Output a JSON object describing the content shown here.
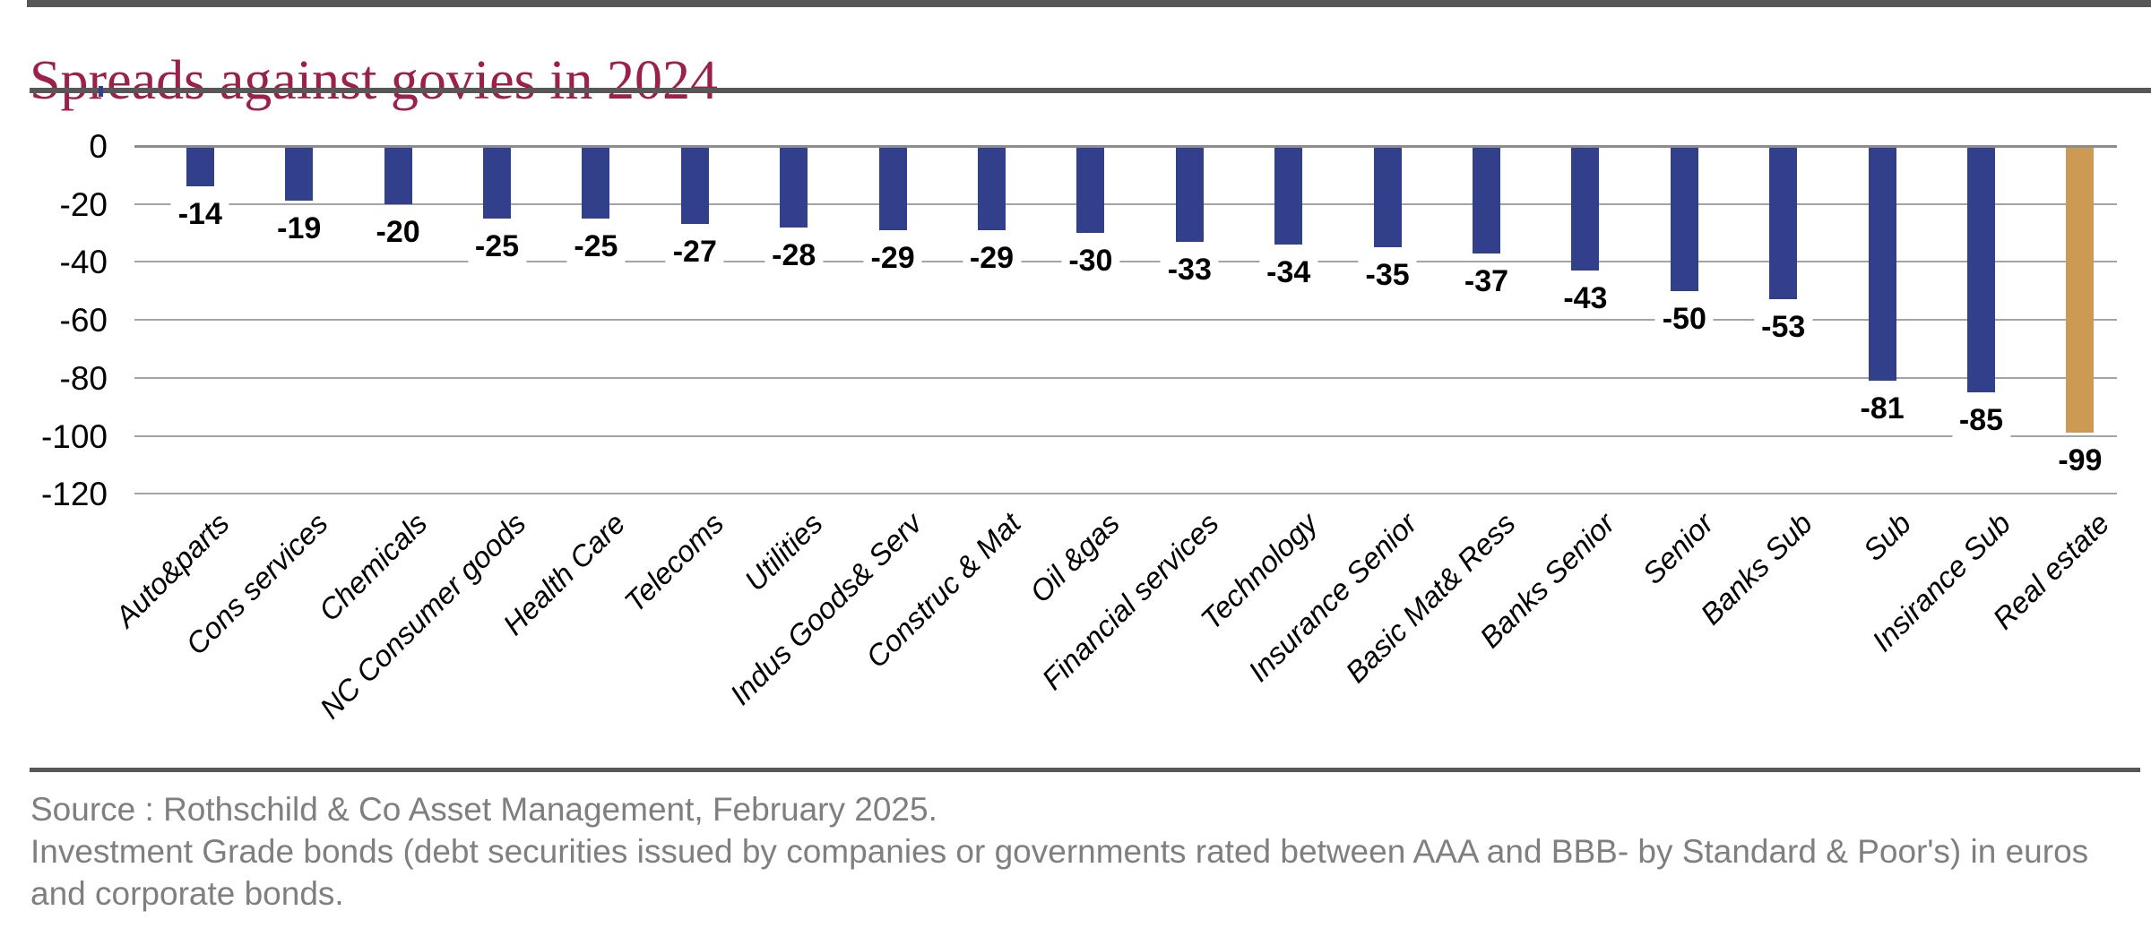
{
  "title": "Spreads against govies in 2024",
  "colors": {
    "bar": "#323F8B",
    "highlight": "#CC9A52",
    "title": "#9B2148",
    "gridline": "#A4A4A4",
    "zero_line": "#8C8C8C",
    "rule": "#575757",
    "footer_text": "#7F7F7F",
    "data_label": "#000000"
  },
  "chart_data": {
    "type": "bar",
    "title": "Spreads against govies in 2024",
    "categories": [
      "Auto&parts",
      "Cons services",
      "Chemicals",
      "NC Consumer goods",
      "Health Care",
      "Telecoms",
      "Utilities",
      "Indus Goods& Serv",
      "Construc & Mat",
      "Oil &gas",
      "Financial services",
      "Technology",
      "Insurance Senior",
      "Basic Mat& Ress",
      "Banks Senior",
      "Senior",
      "Banks Sub",
      "Sub",
      "Insirance Sub",
      "Real estate"
    ],
    "values": [
      -14,
      -19,
      -20,
      -25,
      -25,
      -27,
      -28,
      -29,
      -29,
      -30,
      -33,
      -34,
      -35,
      -37,
      -43,
      -50,
      -53,
      -81,
      -85,
      -99
    ],
    "highlight_category": "Real estate",
    "xlabel": "",
    "ylabel": "",
    "ylim": [
      -120,
      0
    ],
    "yticks": [
      0,
      -20,
      -40,
      -60,
      -80,
      -100,
      -120
    ],
    "grid": true,
    "data_labels": true,
    "legend": "none"
  },
  "footer": {
    "lines": [
      "Source : Rothschild & Co Asset Management, February 2025.",
      "Investment Grade bonds (debt securities issued by companies or governments rated between AAA and BBB- by Standard & Poor's) in euros",
      "and corporate bonds."
    ]
  }
}
